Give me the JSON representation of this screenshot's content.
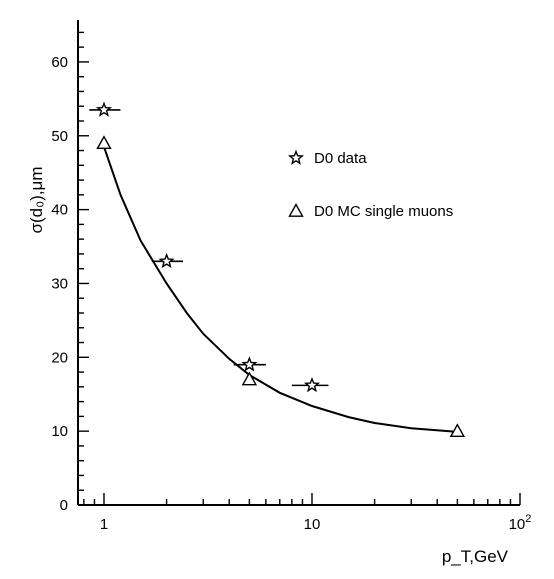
{
  "chart_data": {
    "type": "scatter",
    "x_scale": "log",
    "xlim": [
      0.75,
      100
    ],
    "ylim": [
      0,
      65
    ],
    "x_ticks": [
      {
        "value": 1,
        "label": "1"
      },
      {
        "value": 10,
        "label": "10"
      },
      {
        "value": 100,
        "label": "10",
        "sup": "2"
      }
    ],
    "y_ticks": [
      0,
      10,
      20,
      30,
      40,
      50,
      60
    ],
    "xlabel": "p_T,GeV",
    "ylabel": "σ(d₀),μm",
    "legend_position": "upper-right",
    "series": [
      {
        "name": "D0 data",
        "marker": "star",
        "points": [
          {
            "x": 1.0,
            "y": 53.5,
            "xerr": [
              0.85,
              1.2
            ]
          },
          {
            "x": 2.0,
            "y": 33.0,
            "xerr": [
              1.7,
              2.4
            ]
          },
          {
            "x": 5.0,
            "y": 19.0,
            "xerr": [
              4.2,
              6.0
            ]
          },
          {
            "x": 10.0,
            "y": 16.2,
            "xerr": [
              8.0,
              12.0
            ]
          }
        ]
      },
      {
        "name": "D0 MC single muons",
        "marker": "triangle",
        "points": [
          {
            "x": 1.0,
            "y": 49.0
          },
          {
            "x": 5.0,
            "y": 17.0
          },
          {
            "x": 50.0,
            "y": 10.0
          }
        ]
      }
    ],
    "fit_curve": {
      "x": [
        1.0,
        1.2,
        1.5,
        2.0,
        2.5,
        3.0,
        4.0,
        5.0,
        7.0,
        10.0,
        15.0,
        20.0,
        30.0,
        50.0
      ],
      "y": [
        48.5,
        42.0,
        35.8,
        30.0,
        26.0,
        23.2,
        19.8,
        17.6,
        15.2,
        13.4,
        11.9,
        11.1,
        10.4,
        9.9
      ]
    }
  }
}
